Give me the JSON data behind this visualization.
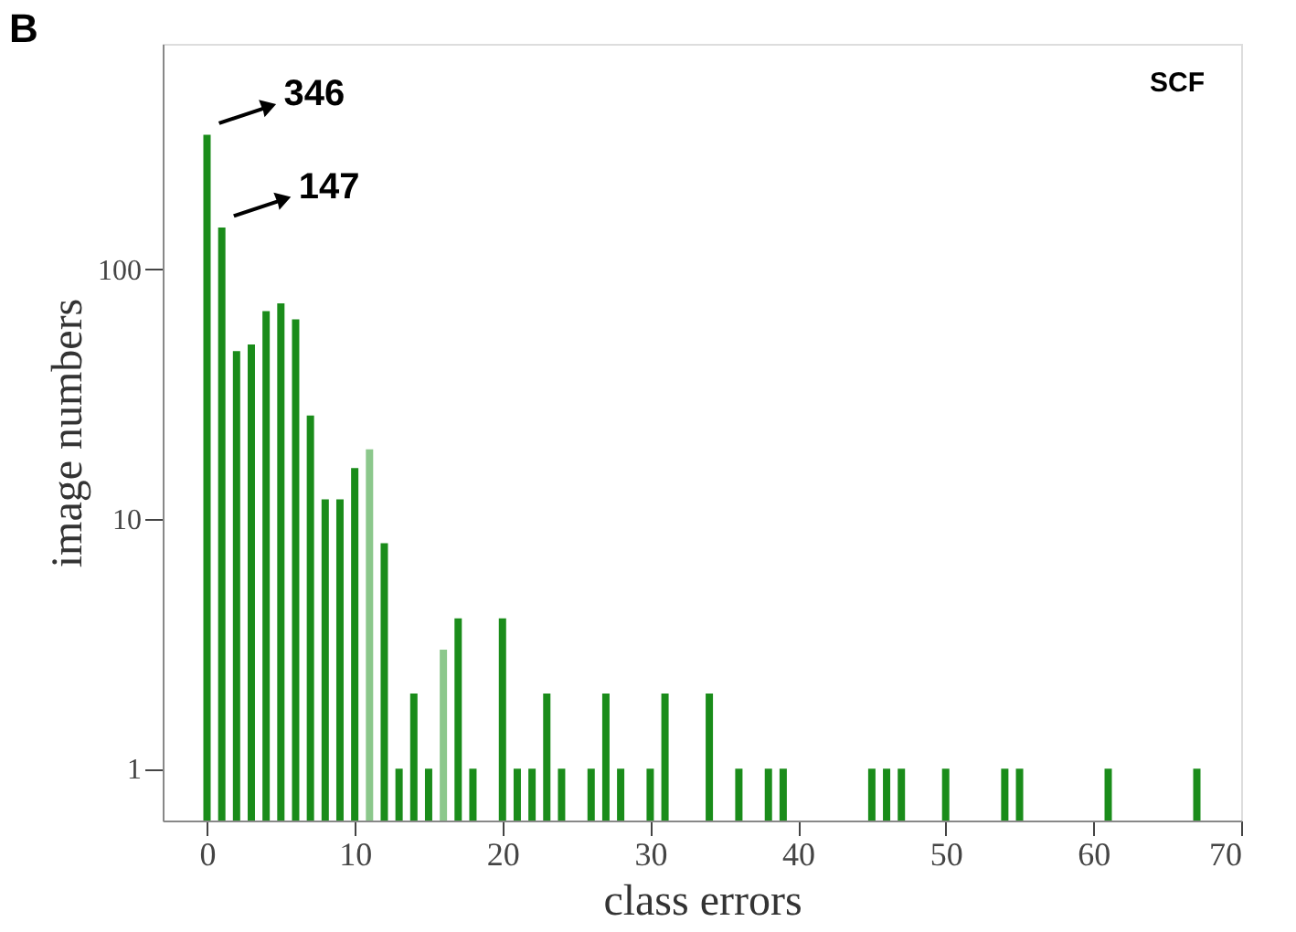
{
  "chart_data": {
    "type": "bar",
    "title": "B",
    "xlabel": "class errors",
    "ylabel": "image numbers",
    "x": [
      0,
      1,
      2,
      3,
      4,
      5,
      6,
      7,
      8,
      9,
      10,
      11,
      12,
      13,
      14,
      15,
      16,
      17,
      18,
      20,
      21,
      22,
      23,
      24,
      26,
      27,
      28,
      30,
      31,
      34,
      36,
      38,
      39,
      45,
      46,
      47,
      50,
      54,
      55,
      61,
      67
    ],
    "values": [
      346,
      147,
      47,
      50,
      68,
      73,
      63,
      26,
      12,
      12,
      16,
      19,
      8,
      1,
      2,
      1,
      3,
      4,
      1,
      4,
      1,
      1,
      2,
      1,
      1,
      2,
      1,
      1,
      2,
      2,
      1,
      1,
      1,
      1,
      1,
      1,
      1,
      1,
      1,
      1,
      1
    ],
    "colors": [
      "#1a8c1a",
      "#1a8c1a",
      "#1a8c1a",
      "#1a8c1a",
      "#1a8c1a",
      "#1a8c1a",
      "#1a8c1a",
      "#1a8c1a",
      "#1a8c1a",
      "#1a8c1a",
      "#1a8c1a",
      "#8cc88c",
      "#1a8c1a",
      "#1a8c1a",
      "#1a8c1a",
      "#1a8c1a",
      "#8cc88c",
      "#1a8c1a",
      "#1a8c1a",
      "#1a8c1a",
      "#1a8c1a",
      "#1a8c1a",
      "#1a8c1a",
      "#1a8c1a",
      "#1a8c1a",
      "#1a8c1a",
      "#1a8c1a",
      "#1a8c1a",
      "#1a8c1a",
      "#1a8c1a",
      "#1a8c1a",
      "#1a8c1a",
      "#1a8c1a",
      "#1a8c1a",
      "#1a8c1a",
      "#1a8c1a",
      "#1a8c1a",
      "#1a8c1a",
      "#1a8c1a",
      "#1a8c1a",
      "#1a8c1a"
    ],
    "log": "y",
    "xlim": [
      -3,
      70
    ],
    "xticks": [
      0,
      10,
      20,
      30,
      40,
      50,
      60,
      70
    ],
    "ylim": [
      0.62,
      800
    ],
    "yticks": [
      1,
      10,
      100
    ],
    "grid": false,
    "annotations": [
      {
        "text": "346",
        "x": 0,
        "y": 346
      },
      {
        "text": "147",
        "x": 1,
        "y": 147
      },
      "SCF"
    ]
  }
}
